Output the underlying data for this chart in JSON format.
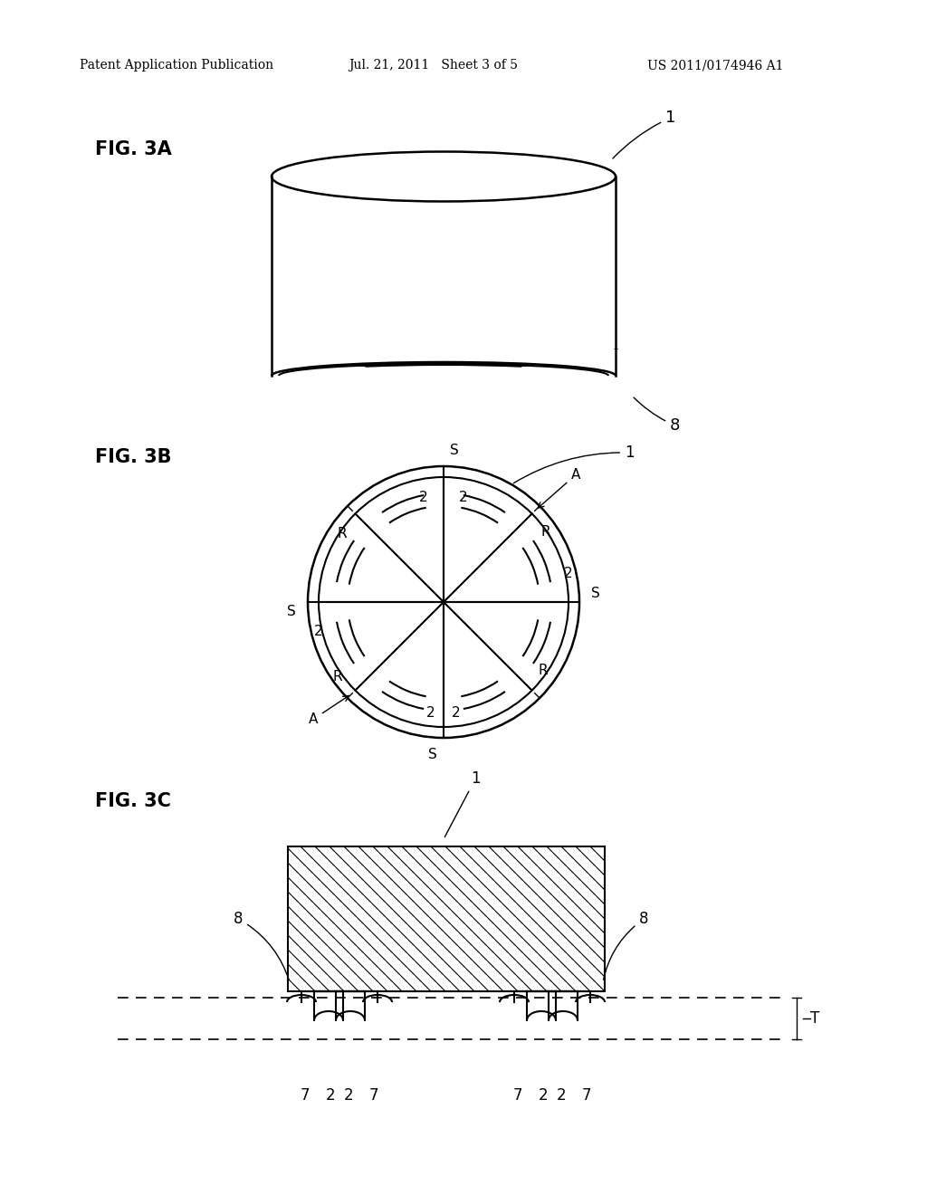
{
  "bg_color": "#ffffff",
  "header_left": "Patent Application Publication",
  "header_mid": "Jul. 21, 2011   Sheet 3 of 5",
  "header_right": "US 2011/0174946 A1",
  "fig3a_label": "FIG. 3A",
  "fig3b_label": "FIG. 3B",
  "fig3c_label": "FIG. 3C"
}
